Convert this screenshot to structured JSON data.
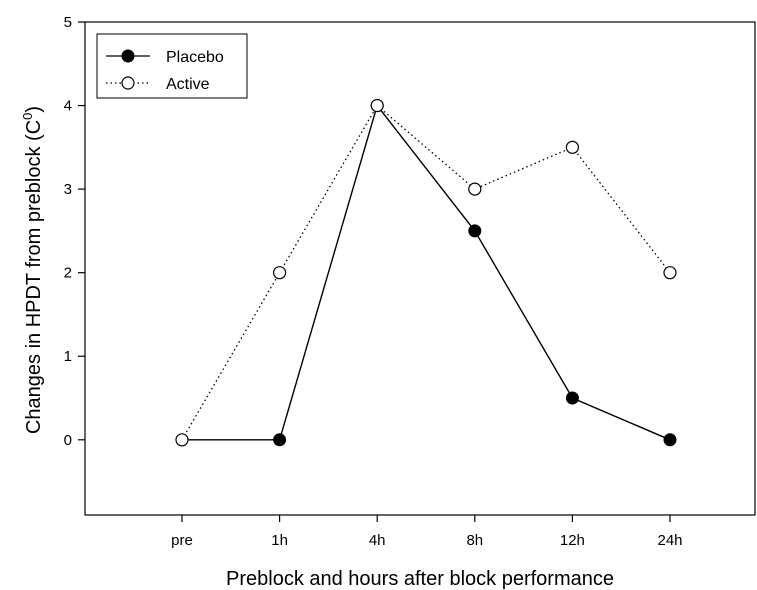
{
  "chart_data": {
    "type": "line",
    "categories": [
      "pre",
      "1h",
      "4h",
      "8h",
      "12h",
      "24h"
    ],
    "series": [
      {
        "name": "Placebo",
        "values": [
          null,
          0,
          4,
          2.5,
          0.5,
          0
        ],
        "line_style": "solid",
        "marker": "filled-circle",
        "color": "#000000"
      },
      {
        "name": "Active",
        "values": [
          0,
          2,
          4,
          3,
          3.5,
          2
        ],
        "line_style": "dotted",
        "marker": "open-circle",
        "color": "#000000"
      }
    ],
    "placebo_start": {
      "category": "pre",
      "value": 0
    },
    "ylabel": "Changes in HPDT from preblock (C",
    "ylabel_superscript": "0",
    "ylabel_suffix": ")",
    "xlabel": "Preblock and hours after block performance",
    "yticks": [
      0,
      1,
      2,
      3,
      4,
      5
    ],
    "ylim": [
      -0.9,
      5
    ],
    "legend_position": "top-left",
    "grid": false
  }
}
